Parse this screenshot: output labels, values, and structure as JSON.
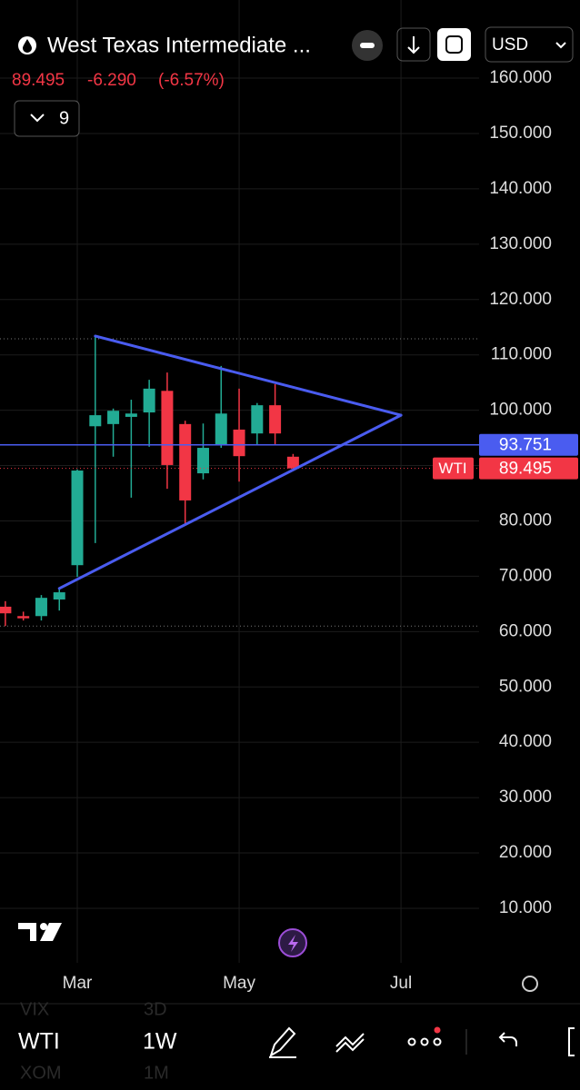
{
  "header": {
    "title": "West Texas Intermediate ...",
    "price": "89.495",
    "change": "-6.290",
    "change_pct": "(-6.57%)",
    "indicators": "9",
    "currency": "USD"
  },
  "toolbar": {
    "symbol": "WTI",
    "interval": "1W",
    "symbol_ghost_top": "VIX",
    "interval_ghost_top": "3D",
    "symbol_ghost_bottom": "XOM",
    "interval_ghost_bottom": "1M"
  },
  "chart_data": {
    "type": "candlestick",
    "categories": [
      null,
      null,
      null,
      null,
      null,
      null,
      null,
      null,
      null,
      null,
      null,
      null,
      null,
      null,
      null,
      null,
      null
    ],
    "open": [
      64.5,
      62.8,
      62.8,
      65.8,
      72.0,
      97.1,
      97.5,
      98.8,
      99.6,
      103.5,
      97.5,
      88.6,
      93.7,
      96.5,
      95.8,
      100.9,
      91.6
    ],
    "high": [
      65.5,
      63.6,
      66.6,
      67.8,
      89.3,
      113.4,
      100.3,
      101.9,
      105.5,
      106.8,
      98.1,
      97.6,
      108.0,
      103.9,
      101.3,
      104.7,
      92.1
    ],
    "low": [
      61.0,
      62.0,
      62.0,
      63.8,
      69.9,
      76.0,
      91.6,
      84.2,
      93.4,
      85.8,
      79.3,
      87.5,
      93.2,
      87.1,
      93.7,
      93.7,
      89.1
    ],
    "close": [
      63.3,
      62.4,
      66.1,
      67.1,
      89.1,
      99.1,
      99.9,
      99.4,
      103.9,
      90.1,
      83.7,
      93.2,
      99.4,
      91.7,
      100.9,
      95.8,
      89.495
    ],
    "up_color": "#22ab94",
    "down_color": "#f23645",
    "ylim": [
      0,
      167
    ],
    "yticks": [
      {
        "value": 10,
        "label": "10.000"
      },
      {
        "value": 20,
        "label": "20.000"
      },
      {
        "value": 30,
        "label": "30.000"
      },
      {
        "value": 40,
        "label": "40.000"
      },
      {
        "value": 50,
        "label": "50.000"
      },
      {
        "value": 60,
        "label": "60.000"
      },
      {
        "value": 70,
        "label": "70.000"
      },
      {
        "value": 80,
        "label": "80.000"
      },
      {
        "value": 90,
        "label": "90.000"
      },
      {
        "value": 100,
        "label": "100.000"
      },
      {
        "value": 110,
        "label": "110.000"
      },
      {
        "value": 120,
        "label": "120.000"
      },
      {
        "value": 130,
        "label": "130.000"
      },
      {
        "value": 140,
        "label": "140.000"
      },
      {
        "value": 150,
        "label": "150.000"
      },
      {
        "value": 160,
        "label": "160.000"
      }
    ],
    "xticks": [
      {
        "value": 4,
        "label": "Mar"
      },
      {
        "value": 13,
        "label": "May"
      },
      {
        "value": 22,
        "label": "Jul"
      }
    ],
    "grid": true,
    "trendlines": [
      {
        "start": [
          5,
          113.4
        ],
        "end": [
          22,
          99.1
        ],
        "color": "#4a5cf0"
      },
      {
        "start": [
          3,
          67.8
        ],
        "end": [
          22,
          99.1
        ],
        "color": "#4a5cf0"
      }
    ],
    "hline": {
      "value": 93.751,
      "label": "93.751",
      "color": "#4a5cf0"
    },
    "last_price": {
      "value": 89.495,
      "label": "89.495",
      "tag": "WTI",
      "color": "#f23645"
    },
    "dotted_levels": [
      112.9,
      61.0
    ]
  }
}
